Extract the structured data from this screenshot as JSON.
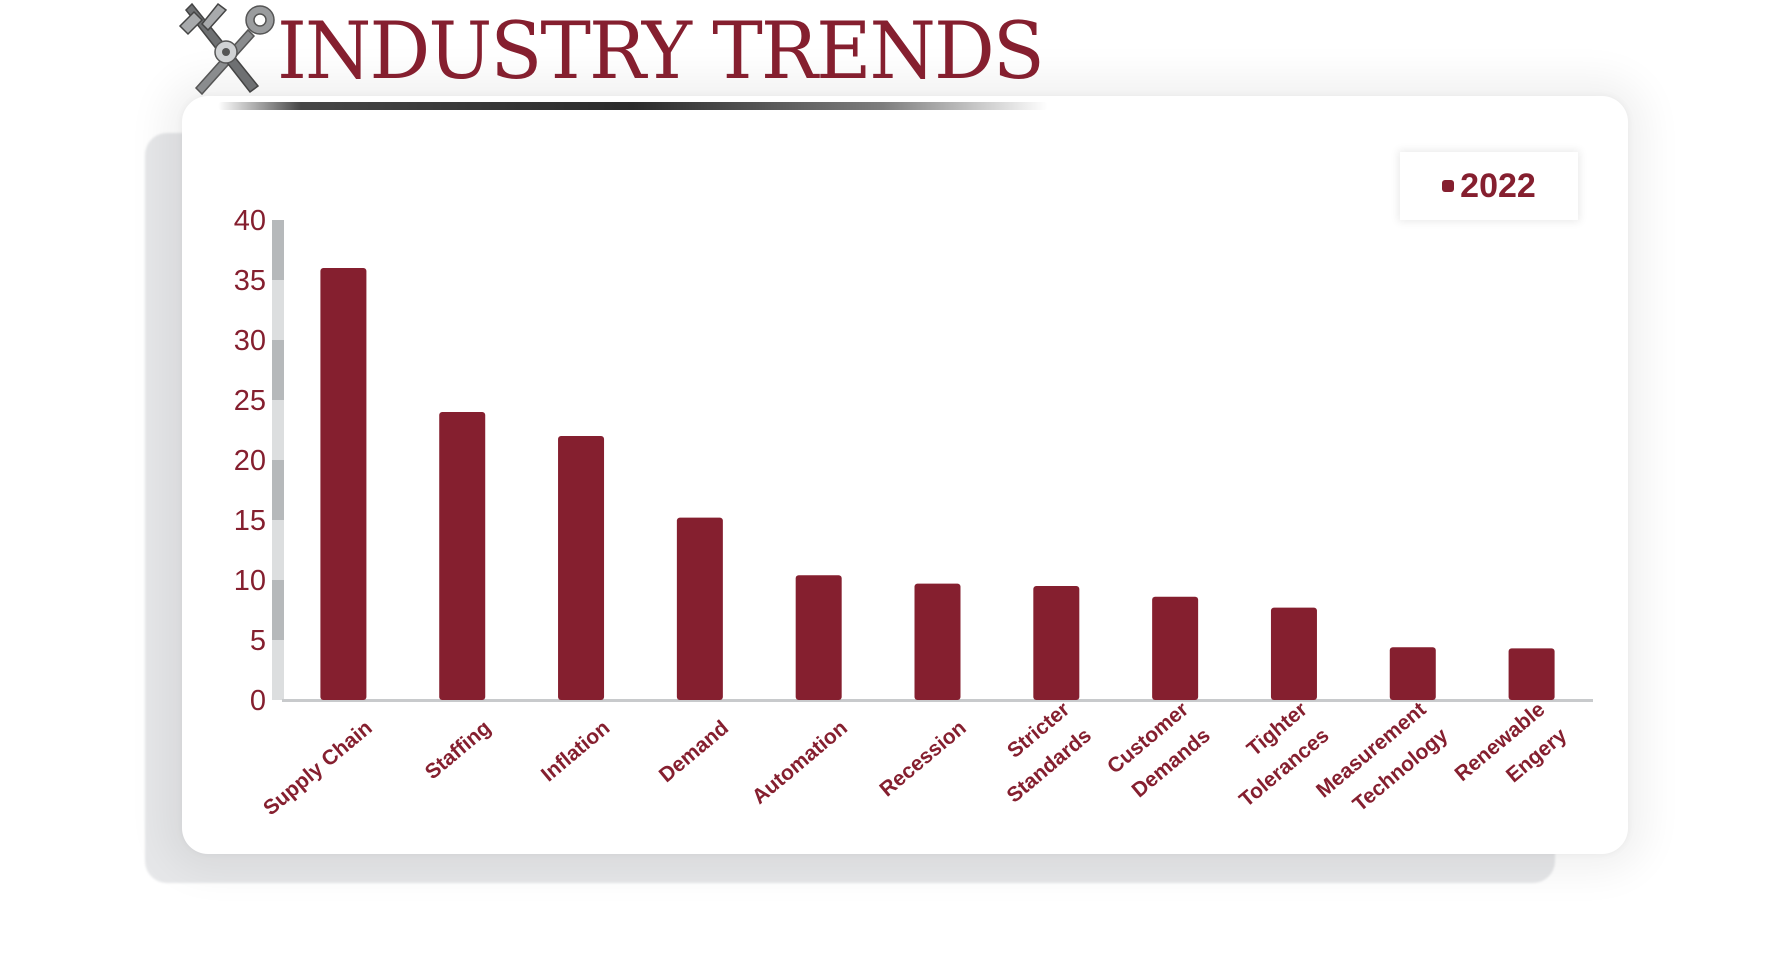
{
  "header": {
    "title": "INDUSTRY TRENDS",
    "logo_icon": "calipers-and-wrench-icon"
  },
  "legend": {
    "label": "2022"
  },
  "colors": {
    "bar": "#851f2f",
    "text": "#851f2f",
    "axis_band_light": "#dcdedf",
    "axis_band_dark": "#b6b9bb",
    "baseline": "#c8cacc"
  },
  "chart_data": {
    "type": "bar",
    "categories": [
      "Supply Chain",
      "Staffing",
      "Inflation",
      "Demand",
      "Automation",
      "Recession",
      "Stricter Standards",
      "Customer Demands",
      "Tighter Tolerances",
      "Measurement Technology",
      "Renewable Engery"
    ],
    "category_lines": [
      [
        "Supply Chain"
      ],
      [
        "Staffing"
      ],
      [
        "Inflation"
      ],
      [
        "Demand"
      ],
      [
        "Automation"
      ],
      [
        "Recession"
      ],
      [
        "Stricter",
        "Standards"
      ],
      [
        "Customer",
        "Demands"
      ],
      [
        "Tighter",
        "Tolerances"
      ],
      [
        "Measurement",
        "Technology"
      ],
      [
        "Renewable",
        "Engery"
      ]
    ],
    "series": [
      {
        "name": "2022",
        "values": [
          36,
          24,
          22,
          15.2,
          10.4,
          9.7,
          9.5,
          8.6,
          7.7,
          4.4,
          4.3
        ]
      }
    ],
    "ylim": [
      0,
      40
    ],
    "yticks": [
      0,
      5,
      10,
      15,
      20,
      25,
      30,
      35,
      40
    ],
    "grid": false,
    "legend_position": "top-right"
  }
}
